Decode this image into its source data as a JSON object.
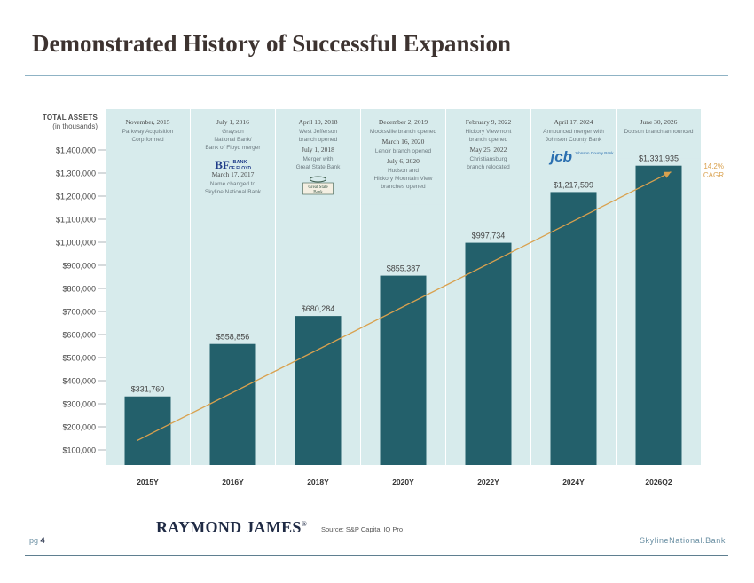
{
  "page": {
    "title": "Demonstrated History of Successful Expansion",
    "y_axis_title": "TOTAL ASSETS",
    "y_axis_subtitle": "(in thousands)",
    "cagr_value": "14.2%",
    "cagr_label": "CAGR",
    "footer_brand": "RAYMOND JAMES",
    "footer_brand_mark": "®",
    "footer_source": "Source: S&P Capital IQ Pro",
    "footer_page_prefix": "pg",
    "footer_page_number": "4",
    "footer_site": "SkylineNational.Bank"
  },
  "colors": {
    "bar": "#23606b",
    "panel": "#d7ebec",
    "trend": "#d9a14e",
    "header_date": "#4a4a4a",
    "header_text": "#6c7a80"
  },
  "chart_data": {
    "type": "bar",
    "categories": [
      "2015Y",
      "2016Y",
      "2018Y",
      "2020Y",
      "2022Y",
      "2024Y",
      "2026Q2"
    ],
    "values": [
      331760,
      558856,
      680284,
      855387,
      997734,
      1217599,
      1331935
    ],
    "value_labels": [
      "$331,760",
      "$558,856",
      "$680,284",
      "$855,387",
      "$997,734",
      "$1,217,599",
      "$1,331,935"
    ],
    "ylim": [
      100000,
      1400000
    ],
    "yticks": [
      1400000,
      1300000,
      1200000,
      1100000,
      1000000,
      900000,
      800000,
      700000,
      600000,
      500000,
      400000,
      300000,
      200000,
      100000
    ],
    "ytick_labels": [
      "$1,400,000",
      "$1,300,000",
      "$1,200,000",
      "$1,100,000",
      "$1,000,000",
      "$900,000",
      "$800,000",
      "$700,000",
      "$600,000",
      "$500,000",
      "$400,000",
      "$300,000",
      "$200,000",
      "$100,000"
    ],
    "trend_start": 140000,
    "trend_end": 1305000,
    "grid": false
  },
  "events": [
    {
      "panel_bottom_value": 1383000,
      "items": [
        {
          "date": "November, 2015",
          "text": [
            "Parkway Acquisition",
            "Corp formed"
          ]
        }
      ]
    },
    {
      "panel_bottom_value": 1128000,
      "logo": "BANK OF FLOYD",
      "logo_after": 0,
      "items": [
        {
          "date": "July 1, 2016",
          "text": [
            "Grayson",
            "National Bank/",
            "Bank of Floyd merger"
          ]
        },
        {
          "date": "March 17, 2017",
          "text": [
            "Name changed to",
            "Skyline National Bank"
          ]
        }
      ]
    },
    {
      "panel_bottom_value": 1138000,
      "logo": "Great State Bank",
      "logo_after": 1,
      "items": [
        {
          "date": "April 19, 2018",
          "text": [
            "West Jefferson",
            "branch opened"
          ]
        },
        {
          "date": "July 1, 2018",
          "text": [
            "Merger with",
            "Great State Bank"
          ]
        }
      ]
    },
    {
      "panel_bottom_value": 1162000,
      "items": [
        {
          "date": "December 2, 2019",
          "text": [
            "Mocksville branch opened"
          ]
        },
        {
          "date": "March 16, 2020",
          "text": [
            "Lenoir branch opened"
          ]
        },
        {
          "date": "July 6, 2020",
          "text": [
            "Hudson and",
            "Hickory Mountain View",
            "branches opened"
          ]
        }
      ]
    },
    {
      "panel_bottom_value": 1241000,
      "items": [
        {
          "date": "February 9, 2022",
          "text": [
            "Hickory Viewmont",
            "branch opened"
          ]
        },
        {
          "date": "May 25, 2022",
          "text": [
            "Christiansburg",
            "branch relocated"
          ]
        }
      ]
    },
    {
      "panel_bottom_value": 1303000,
      "logo": "jcb",
      "logo_sub": "Johnson County Bank",
      "logo_after": 0,
      "items": [
        {
          "date": "April 17, 2024",
          "text": [
            "Announced merger with",
            "Johnson County Bank"
          ]
        }
      ]
    },
    {
      "panel_bottom_value": 1362000,
      "items": [
        {
          "date": "June 30, 2026",
          "text": [
            "Dobson branch announced"
          ]
        }
      ]
    }
  ]
}
